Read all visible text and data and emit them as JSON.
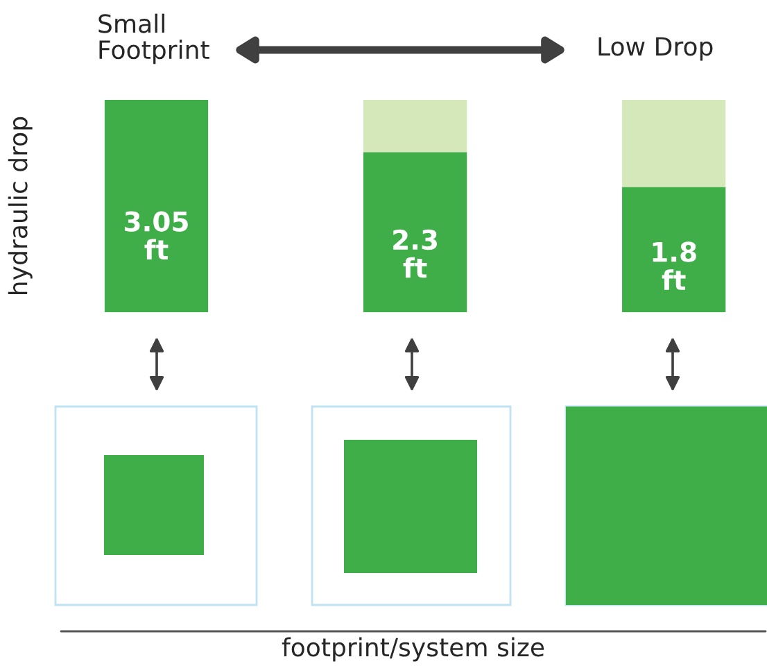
{
  "chart_data": {
    "type": "bar",
    "stacked": true,
    "ylabel": "hydraulic drop",
    "categories": [
      null,
      null,
      null
    ],
    "series": [
      {
        "color": "#3fae49",
        "values": [
          3.05,
          2.3,
          1.8
        ],
        "value_labels": [
          "3.05\nft",
          "2.3\nft",
          "1.8\nft"
        ]
      },
      {
        "color": "#d5e8b9",
        "values": [
          null,
          0.75,
          1.25
        ]
      }
    ],
    "ylim": [
      0,
      3.05
    ],
    "annotations": [
      "Small\nFootprint",
      "Low Drop",
      "footprint/system size"
    ],
    "grid": false,
    "legend": false
  }
}
